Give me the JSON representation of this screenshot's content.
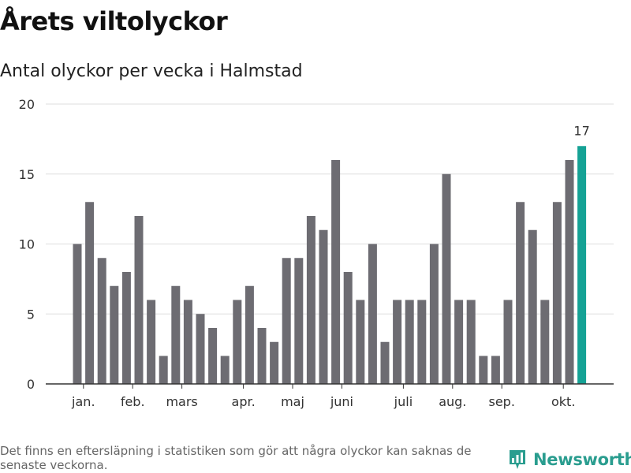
{
  "title": "Årets viltolyckor",
  "subtitle": "Antal olyckor per vecka i Halmstad",
  "footnote": "Det finns en eftersläpning i statistiken som gör att några olyckor kan saknas de senaste veckorna.",
  "brand": {
    "name": "Newsworthy",
    "color": "#2a9d8f",
    "icon": "bar-chart-pin-icon"
  },
  "chart_data": {
    "type": "bar",
    "values": [
      10,
      13,
      9,
      7,
      8,
      12,
      6,
      2,
      7,
      6,
      5,
      4,
      2,
      6,
      7,
      4,
      3,
      9,
      9,
      12,
      11,
      16,
      8,
      6,
      10,
      3,
      6,
      6,
      6,
      10,
      15,
      6,
      6,
      2,
      2,
      6,
      13,
      11,
      6,
      13,
      16,
      17
    ],
    "highlight_index": 41,
    "highlight_label": "17",
    "month_labels": [
      {
        "label": "jan.",
        "bar_index": 0.5
      },
      {
        "label": "feb.",
        "bar_index": 4.5
      },
      {
        "label": "mars",
        "bar_index": 8.5
      },
      {
        "label": "apr.",
        "bar_index": 13.5
      },
      {
        "label": "maj",
        "bar_index": 17.5
      },
      {
        "label": "juni",
        "bar_index": 21.5
      },
      {
        "label": "juli",
        "bar_index": 26.5
      },
      {
        "label": "aug.",
        "bar_index": 30.5
      },
      {
        "label": "sep.",
        "bar_index": 34.5
      },
      {
        "label": "okt.",
        "bar_index": 39.5
      }
    ],
    "yticks": [
      0,
      5,
      10,
      15,
      20
    ],
    "ylim": [
      0,
      20
    ],
    "grid": true,
    "colors": {
      "bar": "#6d6c72",
      "highlight": "#15a295",
      "grid": "#dddddd",
      "axis": "#333333"
    }
  }
}
